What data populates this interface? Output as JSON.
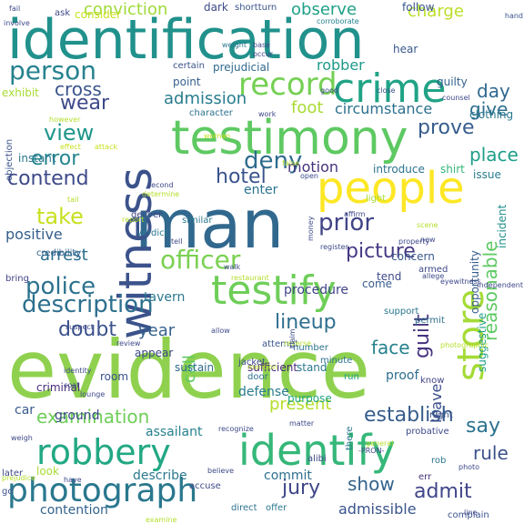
{
  "words": [
    {
      "text": "evidence",
      "color": "#8fd14f"
    },
    {
      "text": "man",
      "color": "#31688e"
    },
    {
      "text": "identification",
      "color": "#21918c"
    },
    {
      "text": "testimony",
      "color": "#5ec962"
    },
    {
      "text": "witness",
      "color": "#3b528b"
    },
    {
      "text": "people",
      "color": "#fde725"
    },
    {
      "text": "identify",
      "color": "#35b779"
    },
    {
      "text": "crime",
      "color": "#20a386"
    },
    {
      "text": "testify",
      "color": "#6ece58"
    },
    {
      "text": "store",
      "color": "#a5db36"
    },
    {
      "text": "robbery",
      "color": "#22a884"
    },
    {
      "text": "photograph",
      "color": "#2a788e"
    },
    {
      "text": "record",
      "color": "#75d054"
    },
    {
      "text": "person",
      "color": "#26828e"
    },
    {
      "text": "officer",
      "color": "#7ad151"
    },
    {
      "text": "police",
      "color": "#2c728e"
    },
    {
      "text": "description",
      "color": "#2d708e"
    },
    {
      "text": "picture",
      "color": "#443983"
    },
    {
      "text": "prior",
      "color": "#414487"
    },
    {
      "text": "take",
      "color": "#c8e020"
    },
    {
      "text": "error",
      "color": "#25858e"
    },
    {
      "text": "deny",
      "color": "#2f6c8e"
    },
    {
      "text": "view",
      "color": "#1f968b"
    },
    {
      "text": "wear",
      "color": "#3e4989"
    },
    {
      "text": "contend",
      "color": "#3e4a89"
    },
    {
      "text": "hotel",
      "color": "#3a548c"
    },
    {
      "text": "reasonable",
      "color": "#5ec962"
    },
    {
      "text": "lineup",
      "color": "#2e6e8e"
    },
    {
      "text": "doubt",
      "color": "#3b528b"
    },
    {
      "text": "prove",
      "color": "#365d8d"
    },
    {
      "text": "guilt",
      "color": "#46327e"
    },
    {
      "text": "admission",
      "color": "#287d8e"
    },
    {
      "text": "circumstance",
      "color": "#2d708e"
    },
    {
      "text": "examination",
      "color": "#6ece58"
    },
    {
      "text": "jury",
      "color": "#3f4788"
    },
    {
      "text": "admit",
      "color": "#404688"
    },
    {
      "text": "show",
      "color": "#33638d"
    },
    {
      "text": "say",
      "color": "#2c728e"
    },
    {
      "text": "establish",
      "color": "#365c8d"
    },
    {
      "text": "present",
      "color": "#b5de2b"
    },
    {
      "text": "rule",
      "color": "#3b528b"
    },
    {
      "text": "place",
      "color": "#1f9e89"
    },
    {
      "text": "give",
      "color": "#2e6f8e"
    },
    {
      "text": "day",
      "color": "#31688e"
    },
    {
      "text": "robber",
      "color": "#1e9b8a"
    },
    {
      "text": "observe",
      "color": "#1fa187"
    },
    {
      "text": "conviction",
      "color": "#a0da39"
    },
    {
      "text": "charge",
      "color": "#bade28"
    },
    {
      "text": "cross",
      "color": "#3a548c"
    },
    {
      "text": "foot",
      "color": "#a8db34"
    },
    {
      "text": "motion",
      "color": "#46337e"
    },
    {
      "text": "positive",
      "color": "#355f8d"
    },
    {
      "text": "arrest",
      "color": "#2d708e"
    },
    {
      "text": "year",
      "color": "#34618d"
    },
    {
      "text": "face",
      "color": "#26828e"
    },
    {
      "text": "call",
      "color": "#5ec962"
    },
    {
      "text": "tavern",
      "color": "#2a778e"
    },
    {
      "text": "defense",
      "color": "#287c8e"
    },
    {
      "text": "leave",
      "color": "#3d4e8a"
    },
    {
      "text": "admissible",
      "color": "#3a548c"
    },
    {
      "text": "contention",
      "color": "#33638d"
    },
    {
      "text": "commit",
      "color": "#2d708e"
    },
    {
      "text": "describe",
      "color": "#2a788e"
    },
    {
      "text": "assailant",
      "color": "#26818e"
    },
    {
      "text": "purpose",
      "color": "#20a386"
    },
    {
      "text": "procedure",
      "color": "#414487"
    },
    {
      "text": "sufficient",
      "color": "#482475"
    },
    {
      "text": "proof",
      "color": "#2e6e8e"
    },
    {
      "text": "car",
      "color": "#38598c"
    },
    {
      "text": "ground",
      "color": "#3e4a89"
    },
    {
      "text": "criminal",
      "color": "#472d7b"
    },
    {
      "text": "room",
      "color": "#3b528b"
    },
    {
      "text": "look",
      "color": "#a8db34"
    },
    {
      "text": "stand",
      "color": "#2a788e"
    },
    {
      "text": "appear",
      "color": "#3f4889"
    },
    {
      "text": "sustain",
      "color": "#2f6b8e"
    },
    {
      "text": "enter",
      "color": "#2c738e"
    },
    {
      "text": "point",
      "color": "#355f8d"
    },
    {
      "text": "certain",
      "color": "#3b528b"
    },
    {
      "text": "prejudicial",
      "color": "#31688e"
    },
    {
      "text": "introduce",
      "color": "#2c728e"
    },
    {
      "text": "shirt",
      "color": "#35b779"
    },
    {
      "text": "issue",
      "color": "#287c8e"
    },
    {
      "text": "clothing",
      "color": "#2a788e"
    },
    {
      "text": "guilty",
      "color": "#34618d"
    },
    {
      "text": "hear",
      "color": "#38588c"
    },
    {
      "text": "consider",
      "color": "#c8e020"
    },
    {
      "text": "dark",
      "color": "#3e4a89"
    },
    {
      "text": "follow",
      "color": "#3a548c"
    },
    {
      "text": "ask",
      "color": "#3e4989"
    },
    {
      "text": "exhibit",
      "color": "#a8db34"
    },
    {
      "text": "instant",
      "color": "#2a788e"
    },
    {
      "text": "objection",
      "color": "#3b528b"
    },
    {
      "text": "character",
      "color": "#2c728e"
    },
    {
      "text": "light",
      "color": "#a8db34"
    },
    {
      "text": "concern",
      "color": "#38588c"
    },
    {
      "text": "armed",
      "color": "#3e4989"
    },
    {
      "text": "tend",
      "color": "#3e4a89"
    },
    {
      "text": "come",
      "color": "#365c8d"
    },
    {
      "text": "deliver",
      "color": "#3f4788"
    },
    {
      "text": "verdict",
      "color": "#2a788e"
    },
    {
      "text": "similar",
      "color": "#2a788e"
    },
    {
      "text": "credibility",
      "color": "#34618d"
    },
    {
      "text": "bring",
      "color": "#414487"
    },
    {
      "text": "attempt",
      "color": "#3a548c"
    },
    {
      "text": "jacket",
      "color": "#3e4989"
    },
    {
      "text": "door",
      "color": "#2c728e"
    },
    {
      "text": "run",
      "color": "#1f9e89"
    },
    {
      "text": "support",
      "color": "#2a778e"
    },
    {
      "text": "permit",
      "color": "#2d708e"
    },
    {
      "text": "opportunity",
      "color": "#365c8d"
    },
    {
      "text": "suggestive",
      "color": "#1f9e89"
    },
    {
      "text": "know",
      "color": "#414487"
    },
    {
      "text": "night",
      "color": "#3b528b"
    },
    {
      "text": "minute",
      "color": "#2c728e"
    },
    {
      "text": "number",
      "color": "#2c728e"
    },
    {
      "text": "probative",
      "color": "#3e4989"
    },
    {
      "text": "alibi",
      "color": "#3e4989"
    },
    {
      "text": "rob",
      "color": "#2a788e"
    },
    {
      "text": "err",
      "color": "#46337e"
    },
    {
      "text": "complain",
      "color": "#3a548c"
    },
    {
      "text": "accuse",
      "color": "#3e4a89"
    },
    {
      "text": "direct",
      "color": "#2d708e"
    },
    {
      "text": "offer",
      "color": "#2a788e"
    },
    {
      "text": "later",
      "color": "#3e4989"
    },
    {
      "text": "go",
      "color": "#3b528b"
    },
    {
      "text": "there",
      "color": "#2a788e"
    },
    {
      "text": "incident",
      "color": "#21918c"
    },
    {
      "text": "shortturn",
      "color": "#3a548c"
    },
    {
      "text": "involve",
      "color": "#3e4989"
    },
    {
      "text": "corroborate",
      "color": "#26828e"
    },
    {
      "text": "hand",
      "color": "#3b528b"
    },
    {
      "text": "weight",
      "color": "#2a788e"
    },
    {
      "text": "base",
      "color": "#3e4989"
    },
    {
      "text": "occur",
      "color": "#414487"
    },
    {
      "text": "counsel",
      "color": "#3e4989"
    },
    {
      "text": "close",
      "color": "#3b528b"
    },
    {
      "text": "good",
      "color": "#3e4989"
    },
    {
      "text": "however",
      "color": "#b5de2b"
    },
    {
      "text": "effect",
      "color": "#c8e020"
    },
    {
      "text": "attack",
      "color": "#c8e020"
    },
    {
      "text": "woman",
      "color": "#c8e020"
    },
    {
      "text": "work",
      "color": "#3e4989"
    },
    {
      "text": "false",
      "color": "#b5de2b"
    },
    {
      "text": "open",
      "color": "#3e4989"
    },
    {
      "text": "second",
      "color": "#3e4989"
    },
    {
      "text": "determine",
      "color": "#b5de2b"
    },
    {
      "text": "affirm",
      "color": "#3e4989"
    },
    {
      "text": "property",
      "color": "#3e4989"
    },
    {
      "text": "scene",
      "color": "#b5de2b"
    },
    {
      "text": "tall",
      "color": "#b5de2b"
    },
    {
      "text": "report",
      "color": "#b5de2b"
    },
    {
      "text": "money",
      "color": "#3e4989"
    },
    {
      "text": "register",
      "color": "#3e4989"
    },
    {
      "text": "new",
      "color": "#3e4989"
    },
    {
      "text": "allege",
      "color": "#3e4989"
    },
    {
      "text": "eyewitness",
      "color": "#3e4989"
    },
    {
      "text": "independent",
      "color": "#3e4989"
    },
    {
      "text": "tell",
      "color": "#3e4989"
    },
    {
      "text": "walk",
      "color": "#3e4989"
    },
    {
      "text": "restaurant",
      "color": "#b5de2b"
    },
    {
      "text": "suspect",
      "color": "#3e4989"
    },
    {
      "text": "review",
      "color": "#3e4989"
    },
    {
      "text": "reverse",
      "color": "#b5de2b"
    },
    {
      "text": "claim",
      "color": "#3e4989"
    },
    {
      "text": "photographic",
      "color": "#b5de2b"
    },
    {
      "text": "mention",
      "color": "#b5de2b"
    },
    {
      "text": "allow",
      "color": "#3e4989"
    },
    {
      "text": "identity",
      "color": "#3e4989"
    },
    {
      "text": "coat",
      "color": "#3e4989"
    },
    {
      "text": "lounge",
      "color": "#3e4989"
    },
    {
      "text": "weigh",
      "color": "#3e4989"
    },
    {
      "text": "recognize",
      "color": "#3e4989"
    },
    {
      "text": "general",
      "color": "#b5de2b"
    },
    {
      "text": "matter",
      "color": "#3e4989"
    },
    {
      "text": "believe",
      "color": "#3e4989"
    },
    {
      "text": "have",
      "color": "#3e4989"
    },
    {
      "text": "prejudice",
      "color": "#b5de2b"
    },
    {
      "text": "examine",
      "color": "#b5de2b"
    },
    {
      "text": "line",
      "color": "#3e4989"
    },
    {
      "text": "-PRON-",
      "color": "#3e4989"
    },
    {
      "text": "photo",
      "color": "#3e4989"
    },
    {
      "text": "fail",
      "color": "#3e4989"
    }
  ]
}
